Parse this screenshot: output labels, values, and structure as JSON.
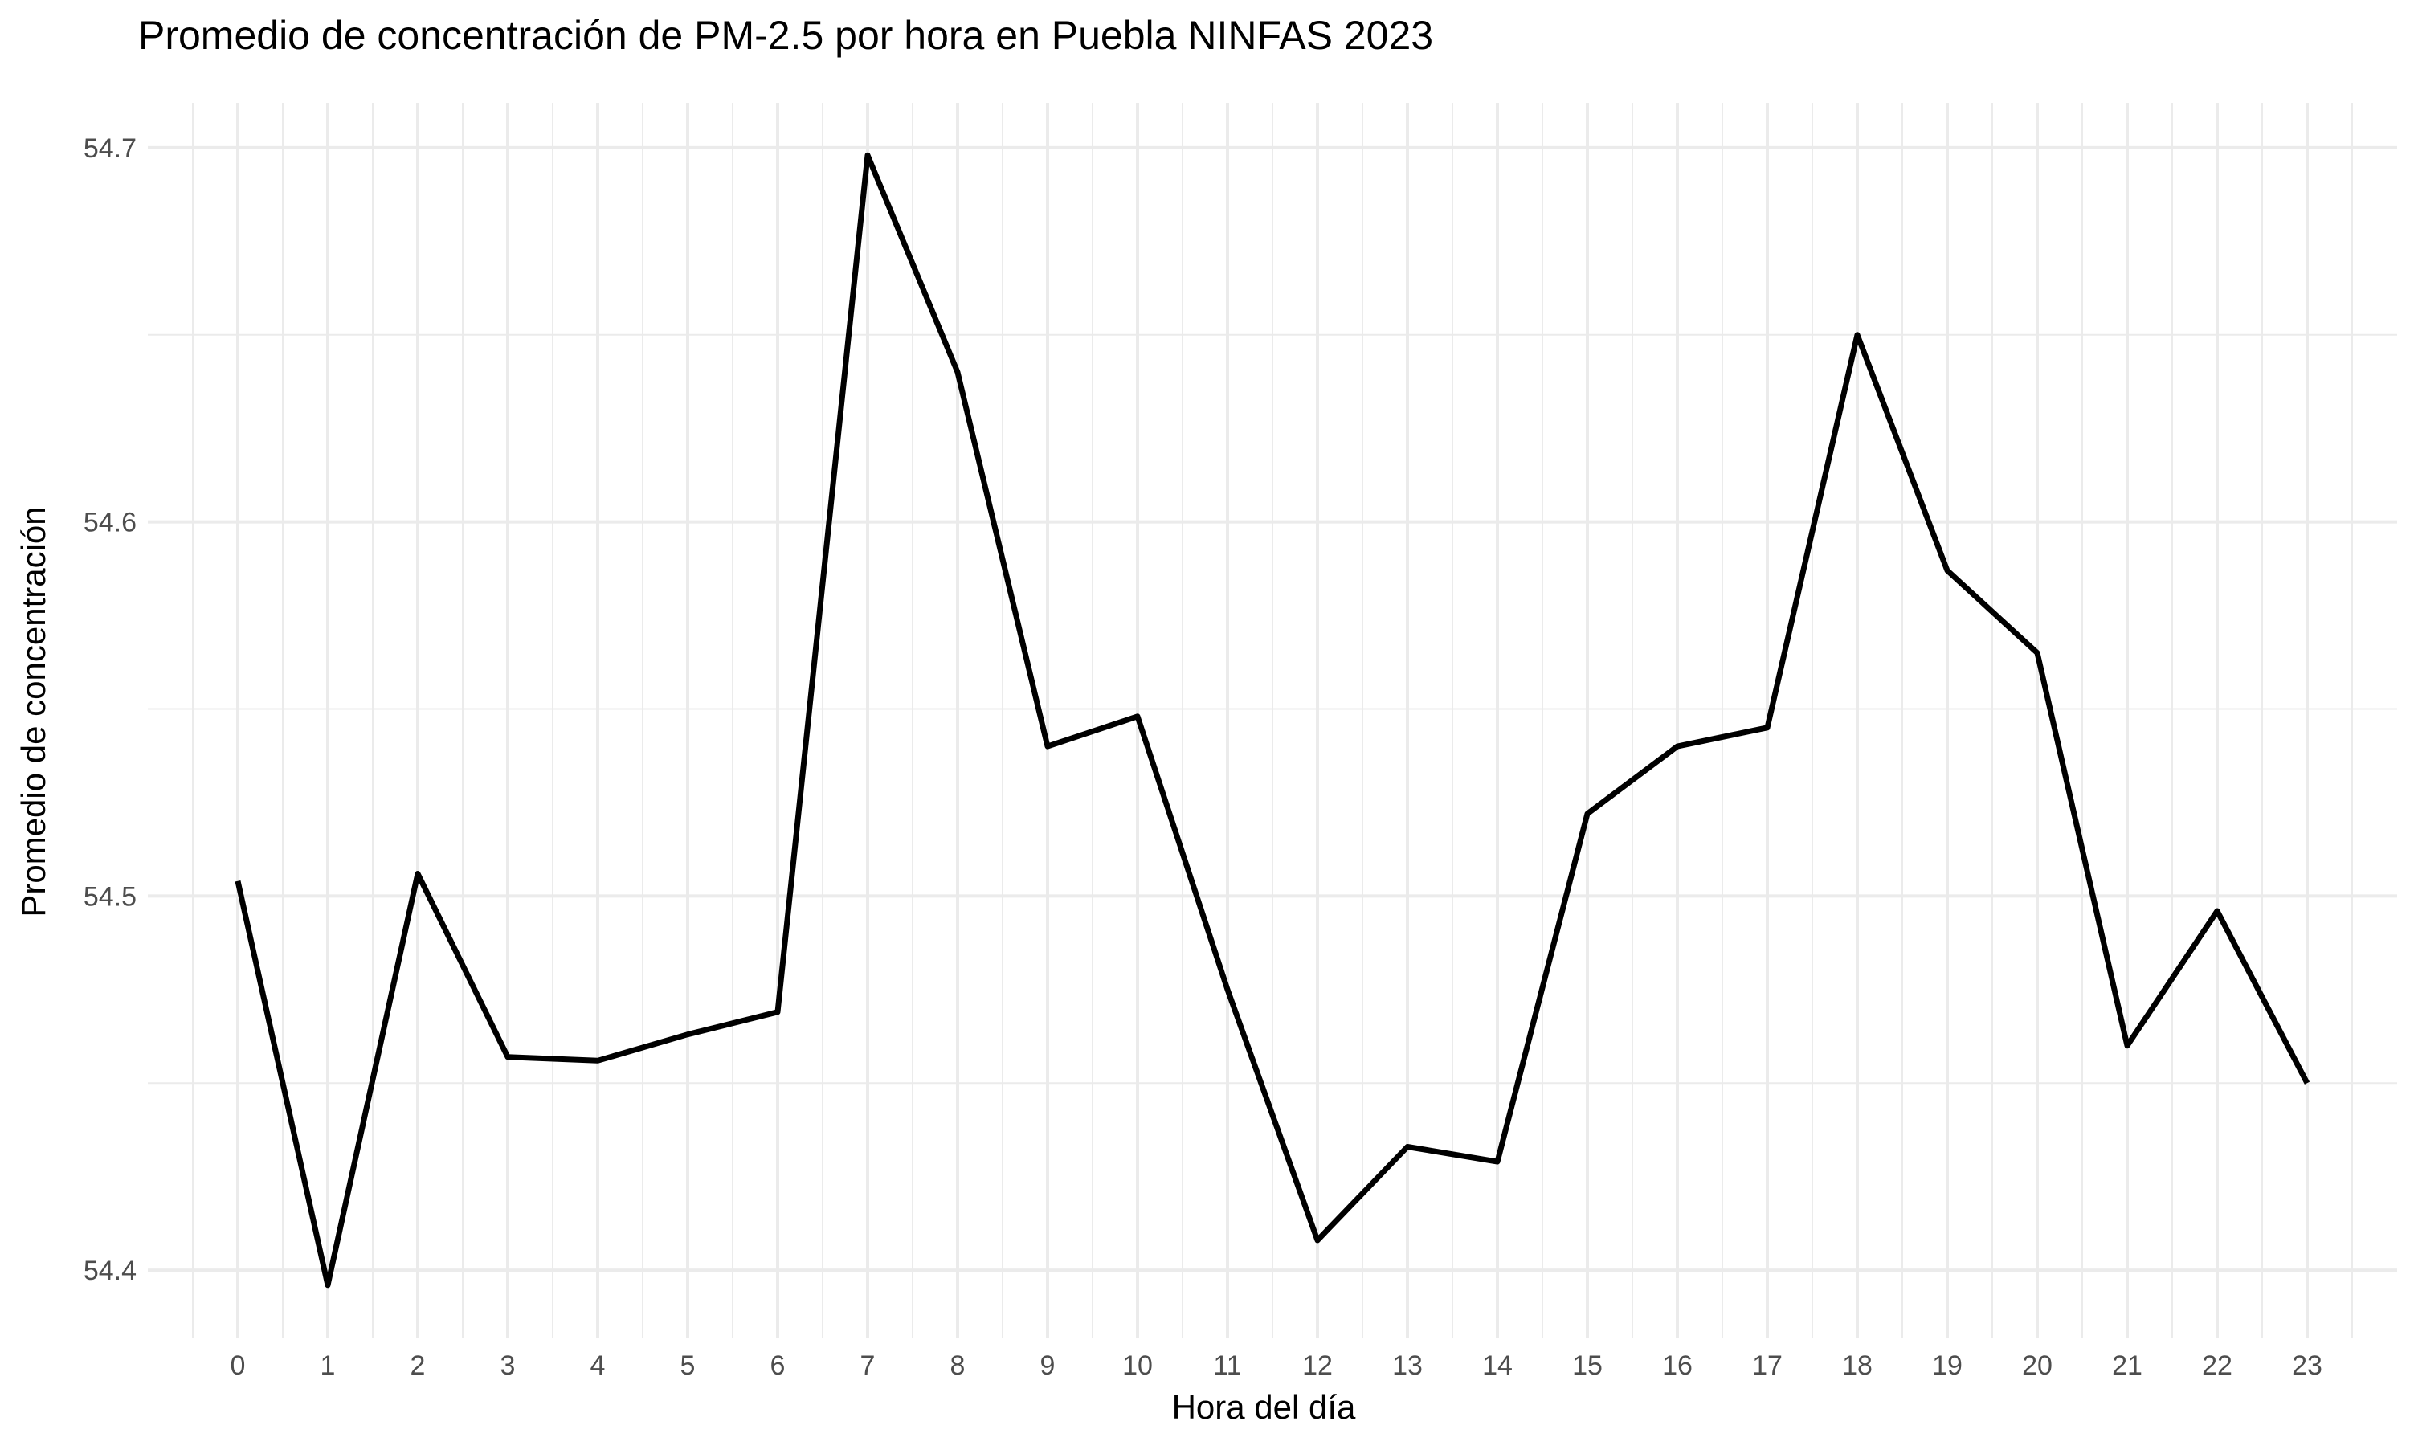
{
  "chart_data": {
    "type": "line",
    "title": "Promedio de concentración de PM-2.5 por hora en Puebla NINFAS 2023",
    "xlabel": "Hora del día",
    "ylabel": "Promedio de concentración",
    "xlim": [
      -1,
      24
    ],
    "ylim": [
      54.382,
      54.712
    ],
    "x_ticks": [
      0,
      1,
      2,
      3,
      4,
      5,
      6,
      7,
      8,
      9,
      10,
      11,
      12,
      13,
      14,
      15,
      16,
      17,
      18,
      19,
      20,
      21,
      22,
      23
    ],
    "y_ticks": [
      54.4,
      54.5,
      54.6,
      54.7
    ],
    "y_tick_labels": [
      "54.4",
      "54.5",
      "54.6",
      "54.7"
    ],
    "grid": true,
    "series": [
      {
        "color": "#000000",
        "x": [
          0,
          1,
          2,
          3,
          4,
          5,
          6,
          7,
          8,
          9,
          10,
          11,
          12,
          13,
          14,
          15,
          16,
          17,
          18,
          19,
          20,
          21,
          22,
          23
        ],
        "values": [
          54.504,
          54.396,
          54.506,
          54.457,
          54.456,
          54.463,
          54.469,
          54.698,
          54.64,
          54.54,
          54.548,
          54.475,
          54.408,
          54.433,
          54.429,
          54.522,
          54.54,
          54.545,
          54.65,
          54.587,
          54.565,
          54.46,
          54.496,
          54.45
        ]
      }
    ]
  }
}
